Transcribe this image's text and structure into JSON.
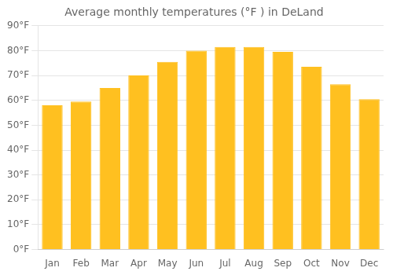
{
  "chart_data": {
    "type": "bar",
    "title": "Average monthly temperatures (°F ) in DeLand",
    "categories": [
      "Jan",
      "Feb",
      "Mar",
      "Apr",
      "May",
      "Jun",
      "Jul",
      "Aug",
      "Sep",
      "Oct",
      "Nov",
      "Dec"
    ],
    "values": [
      58,
      59.5,
      65,
      70,
      75.5,
      80,
      81.5,
      81.5,
      79.5,
      73.5,
      66.5,
      60.5
    ],
    "color": "#FFC020",
    "ylim": [
      0,
      90
    ],
    "yticks": [
      {
        "value": 0,
        "label": "0°F"
      },
      {
        "value": 10,
        "label": "10°F"
      },
      {
        "value": 20,
        "label": "20°F"
      },
      {
        "value": 30,
        "label": "30°F"
      },
      {
        "value": 40,
        "label": "40°F"
      },
      {
        "value": 50,
        "label": "50°F"
      },
      {
        "value": 60,
        "label": "60°F"
      },
      {
        "value": 70,
        "label": "70°F"
      },
      {
        "value": 80,
        "label": "80°F"
      },
      {
        "value": 90,
        "label": "90°F"
      }
    ],
    "grid": true
  }
}
